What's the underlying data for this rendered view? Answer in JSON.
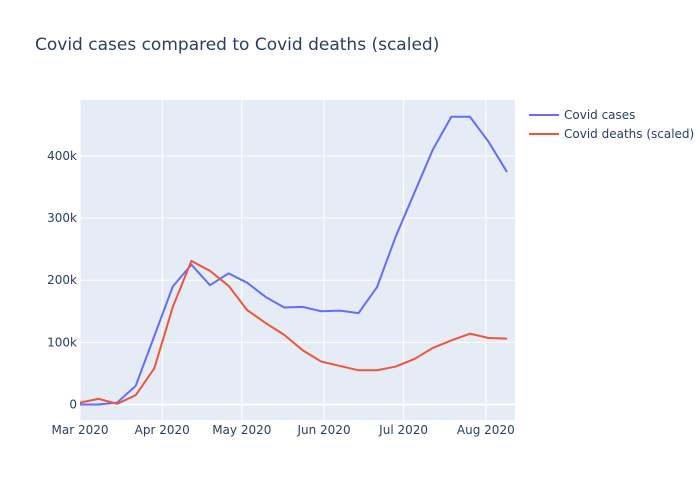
{
  "chart_data": {
    "type": "line",
    "title": "Covid cases compared to Covid deaths (scaled)",
    "xlabel": "",
    "ylabel": "",
    "x_range": [
      "2020-03-01",
      "2020-08-12"
    ],
    "ylim": [
      -25000,
      490000
    ],
    "y_ticks": [
      0,
      100000,
      200000,
      300000,
      400000
    ],
    "y_tick_labels": [
      "0",
      "100k",
      "200k",
      "300k",
      "400k"
    ],
    "x_ticks": [
      "2020-03-01",
      "2020-04-01",
      "2020-05-01",
      "2020-06-01",
      "2020-07-01",
      "2020-08-01"
    ],
    "x_tick_labels": [
      "Mar 2020",
      "Apr 2020",
      "May 2020",
      "Jun 2020",
      "Jul 2020",
      "Aug 2020"
    ],
    "grid": true,
    "legend_position": "top-right",
    "plot_background": "#e5ecf6",
    "dates": [
      "2020-03-01",
      "2020-03-08",
      "2020-03-15",
      "2020-03-22",
      "2020-03-29",
      "2020-04-05",
      "2020-04-12",
      "2020-04-19",
      "2020-04-26",
      "2020-05-03",
      "2020-05-10",
      "2020-05-17",
      "2020-05-24",
      "2020-05-31",
      "2020-06-07",
      "2020-06-14",
      "2020-06-21",
      "2020-06-28",
      "2020-07-05",
      "2020-07-12",
      "2020-07-19",
      "2020-07-26",
      "2020-08-02",
      "2020-08-09"
    ],
    "series": [
      {
        "name": "Covid cases",
        "color": "#636efa",
        "values": [
          0,
          0,
          3000,
          30000,
          110000,
          190000,
          225000,
          192000,
          211000,
          196000,
          173000,
          156000,
          157000,
          150000,
          151000,
          147000,
          189000,
          270000,
          340000,
          410000,
          463000,
          463000,
          423000,
          374000
        ]
      },
      {
        "name": "Covid deaths (scaled)",
        "color": "#ef553b",
        "values": [
          3000,
          9000,
          1000,
          15000,
          58000,
          157000,
          231000,
          215000,
          191000,
          152000,
          131000,
          112000,
          87000,
          69000,
          62000,
          55000,
          55000,
          61000,
          73000,
          91000,
          103000,
          114000,
          107000,
          106000
        ]
      }
    ]
  }
}
